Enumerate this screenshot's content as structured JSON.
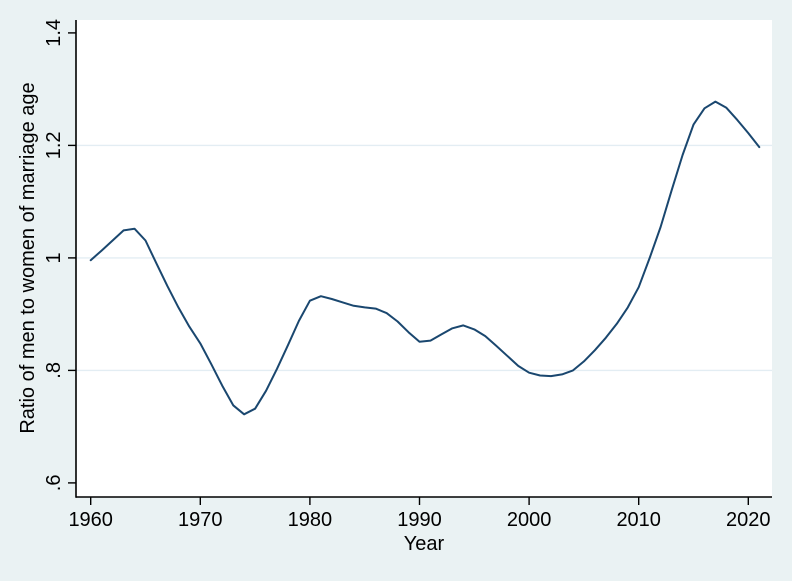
{
  "style": {
    "background_color": "#eaf2f3",
    "plot_area_color": "#ffffff",
    "line_color": "#1a476f",
    "gridline_color": "#e3edf3",
    "axis_color": "#000000",
    "text_color": "#000000"
  },
  "chart_data": {
    "type": "line",
    "title": "",
    "xlabel": "Year",
    "ylabel": "Ratio of men to women of marriage age",
    "legend": "none",
    "grid": "horizontal",
    "xlim": [
      1958.66,
      2022.16
    ],
    "ylim": [
      0.575,
      1.423
    ],
    "x_ticks": {
      "values": [
        1960,
        1970,
        1980,
        1990,
        2000,
        2010,
        2020
      ],
      "labels": [
        "1960",
        "1970",
        "1980",
        "1990",
        "2000",
        "2010",
        "2020"
      ]
    },
    "y_ticks": {
      "values": [
        1.4,
        1.2,
        1.0,
        0.8,
        0.6
      ],
      "labels": [
        "1.4",
        "1.2",
        "1",
        ".8",
        ".6"
      ]
    },
    "y_gridline_values": [
      1.2,
      1.0,
      0.8
    ],
    "series": [
      {
        "name": "Ratio of men to women of marriage age",
        "x": [
          1960,
          1961,
          1962,
          1963,
          1964,
          1965,
          1966,
          1967,
          1968,
          1969,
          1970,
          1971,
          1972,
          1973,
          1974,
          1975,
          1976,
          1977,
          1978,
          1979,
          1980,
          1981,
          1982,
          1983,
          1984,
          1985,
          1986,
          1987,
          1988,
          1989,
          1990,
          1991,
          1992,
          1993,
          1994,
          1995,
          1996,
          1997,
          1998,
          1999,
          2000,
          2001,
          2002,
          2003,
          2004,
          2005,
          2006,
          2007,
          2008,
          2009,
          2010,
          2011,
          2012,
          2013,
          2014,
          2015,
          2016,
          2017,
          2018,
          2019,
          2020,
          2021
        ],
        "y": [
          0.996,
          1.013,
          1.031,
          1.049,
          1.052,
          1.031,
          0.99,
          0.95,
          0.912,
          0.878,
          0.848,
          0.811,
          0.773,
          0.738,
          0.722,
          0.732,
          0.764,
          0.803,
          0.845,
          0.888,
          0.924,
          0.932,
          0.927,
          0.921,
          0.915,
          0.912,
          0.91,
          0.902,
          0.887,
          0.868,
          0.851,
          0.853,
          0.864,
          0.875,
          0.88,
          0.873,
          0.861,
          0.844,
          0.826,
          0.808,
          0.796,
          0.791,
          0.79,
          0.793,
          0.8,
          0.816,
          0.836,
          0.858,
          0.883,
          0.912,
          0.948,
          1.0,
          1.055,
          1.12,
          1.183,
          1.237,
          1.266,
          1.278,
          1.267,
          1.245,
          1.222,
          1.197
        ]
      }
    ]
  }
}
